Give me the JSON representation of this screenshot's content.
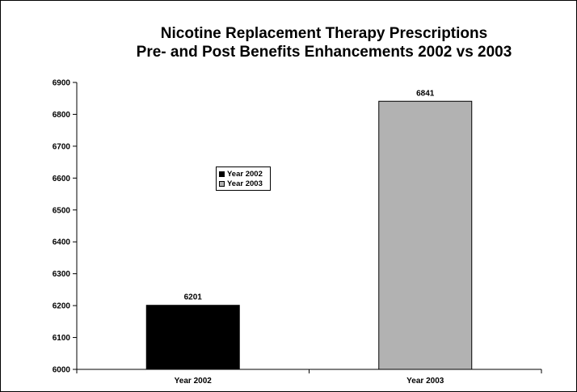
{
  "chart_data": {
    "type": "bar",
    "title": "Nicotine Replacement Therapy Prescriptions",
    "subtitle": "Pre- and Post Benefits Enhancements 2002 vs 2003",
    "categories": [
      "Year 2002",
      "Year 2003"
    ],
    "values": [
      6201,
      6841
    ],
    "data_labels": [
      "6201",
      "6841"
    ],
    "colors": [
      "#000000",
      "#b2b2b2"
    ],
    "ylim": [
      6000,
      6900
    ],
    "yticks": [
      "6000",
      "6100",
      "6200",
      "6300",
      "6400",
      "6500",
      "6600",
      "6700",
      "6800",
      "6900"
    ],
    "xlabel": "",
    "ylabel": "",
    "grid": false,
    "legend": {
      "placement": "inside-upper-left",
      "entries": [
        {
          "label": "Year 2002",
          "color": "#000000"
        },
        {
          "label": "Year 2003",
          "color": "#b2b2b2"
        }
      ]
    }
  }
}
